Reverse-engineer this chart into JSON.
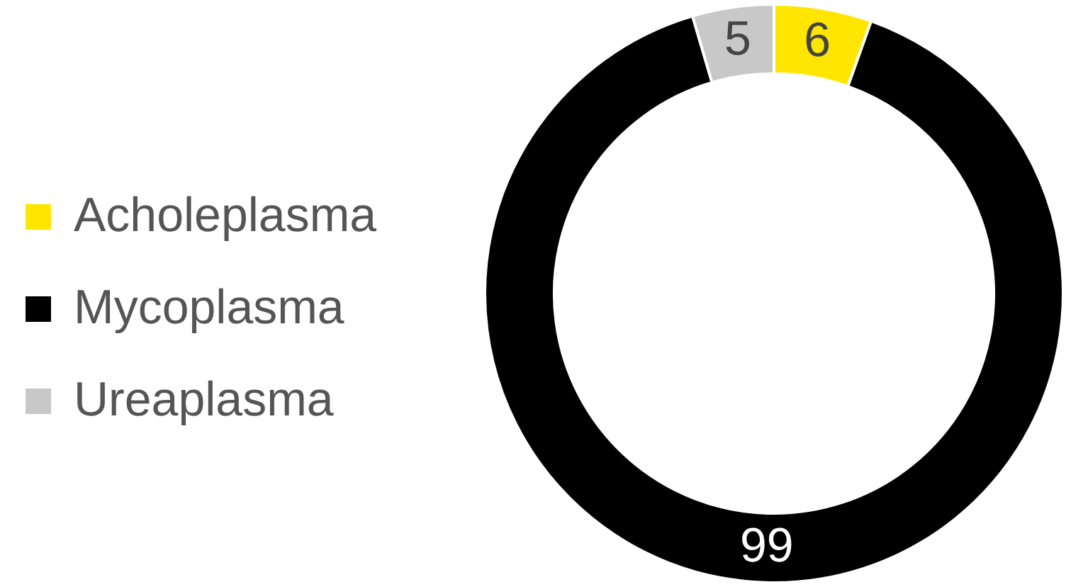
{
  "chart_data": {
    "type": "donut",
    "categories": [
      "Acholeplasma",
      "Mycoplasma",
      "Ureaplasma"
    ],
    "values": [
      6,
      99,
      5
    ],
    "colors": [
      "#ffe600",
      "#000000",
      "#c8c8c8"
    ],
    "data_labels": true,
    "legend": "left"
  }
}
